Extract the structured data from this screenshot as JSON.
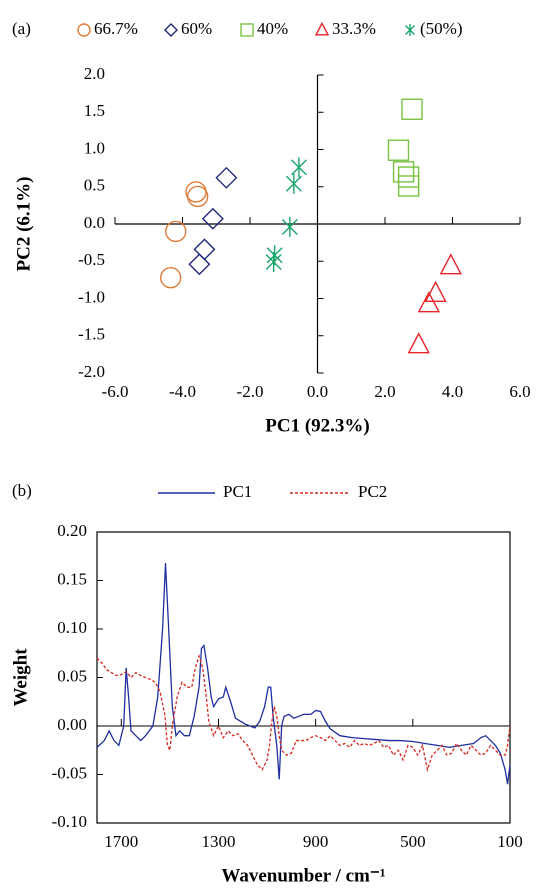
{
  "chart_data": [
    {
      "type": "scatter",
      "label": "(a)",
      "x_label": "PC1 (92.3%)",
      "y_label": "PC2 (6.1%)",
      "xlim": [
        -6,
        6
      ],
      "ylim": [
        -2,
        2
      ],
      "xticks": [
        {
          "value": -6,
          "label": "-6.0"
        },
        {
          "value": -4,
          "label": "-4.0"
        },
        {
          "value": -2,
          "label": "-2.0"
        },
        {
          "value": 0,
          "label": "0.0"
        },
        {
          "value": 2,
          "label": "2.0"
        },
        {
          "value": 4,
          "label": "4.0"
        },
        {
          "value": 6,
          "label": "6.0"
        }
      ],
      "yticks": [
        {
          "value": 2,
          "label": "2.0"
        },
        {
          "value": 1.5,
          "label": "1.5"
        },
        {
          "value": 1,
          "label": "1.0"
        },
        {
          "value": 0.5,
          "label": "0.5"
        },
        {
          "value": 0,
          "label": "0.0"
        },
        {
          "value": -0.5,
          "label": "-0.5"
        },
        {
          "value": -1,
          "label": "-1.0"
        },
        {
          "value": -1.5,
          "label": "-1.5"
        },
        {
          "value": -2,
          "label": "-2.0"
        }
      ],
      "series": [
        {
          "name": "66.7%",
          "color": "#e07b39",
          "marker": "circle",
          "x": [
            -3.6,
            -3.55,
            -4.2,
            -4.35
          ],
          "values": [
            0.43,
            0.37,
            -0.1,
            -0.72
          ]
        },
        {
          "name": "60%",
          "color": "#1f2a7a",
          "marker": "diamond",
          "x": [
            -2.7,
            -3.1,
            -3.35,
            -3.5
          ],
          "values": [
            0.62,
            0.07,
            -0.34,
            -0.54
          ]
        },
        {
          "name": "40%",
          "color": "#7ac143",
          "marker": "square",
          "x": [
            2.8,
            2.4,
            2.55,
            2.7,
            2.7
          ],
          "values": [
            1.54,
            0.99,
            0.7,
            0.63,
            0.51
          ]
        },
        {
          "name": "33.3%",
          "color": "#e8232a",
          "marker": "triangle",
          "x": [
            3.95,
            3.5,
            3.3,
            3.0
          ],
          "values": [
            -0.56,
            -0.93,
            -1.07,
            -1.62
          ]
        },
        {
          "name": "(50%)",
          "color": "#1aa56b",
          "marker": "star",
          "x": [
            -0.55,
            -0.7,
            -0.82,
            -1.27,
            -1.3
          ],
          "values": [
            0.76,
            0.54,
            -0.04,
            -0.42,
            -0.51
          ]
        }
      ]
    },
    {
      "type": "line",
      "label": "(b)",
      "x_label": "Wavenumber / cm⁻¹",
      "y_label": "Weight",
      "xlim": [
        1800,
        100
      ],
      "ylim": [
        -0.1,
        0.2
      ],
      "xticks": [
        1700,
        1300,
        900,
        500,
        100
      ],
      "yticks": [
        {
          "value": 0.2,
          "label": "0.20"
        },
        {
          "value": 0.15,
          "label": "0.15"
        },
        {
          "value": 0.1,
          "label": "0.10"
        },
        {
          "value": 0.05,
          "label": "0.05"
        },
        {
          "value": 0,
          "label": "0.00"
        },
        {
          "value": -0.05,
          "label": "-0.05"
        },
        {
          "value": -0.1,
          "label": "-0.10"
        }
      ],
      "series": [
        {
          "name": "PC1",
          "color": "#1f2fa0",
          "dashed": false,
          "x": [
            1800,
            1770,
            1750,
            1730,
            1710,
            1690,
            1680,
            1670,
            1660,
            1640,
            1620,
            1600,
            1570,
            1550,
            1530,
            1518,
            1505,
            1490,
            1475,
            1460,
            1440,
            1420,
            1400,
            1380,
            1370,
            1360,
            1345,
            1330,
            1320,
            1300,
            1280,
            1270,
            1250,
            1230,
            1210,
            1190,
            1170,
            1150,
            1130,
            1110,
            1095,
            1085,
            1075,
            1060,
            1050,
            1040,
            1030,
            1010,
            990,
            970,
            950,
            920,
            900,
            880,
            860,
            840,
            800,
            750,
            700,
            650,
            600,
            550,
            500,
            450,
            400,
            350,
            300,
            250,
            220,
            200,
            180,
            160,
            140,
            120,
            110,
            100
          ],
          "values": [
            -0.022,
            -0.015,
            -0.005,
            -0.015,
            -0.02,
            0.0,
            0.06,
            0.03,
            -0.005,
            -0.01,
            -0.015,
            -0.01,
            0.0,
            0.03,
            0.1,
            0.168,
            0.1,
            0.02,
            -0.01,
            -0.005,
            -0.01,
            -0.01,
            0.01,
            0.04,
            0.08,
            0.083,
            0.06,
            0.03,
            0.02,
            0.028,
            0.03,
            0.04,
            0.025,
            0.008,
            0.005,
            0.002,
            0.0,
            -0.002,
            0.005,
            0.02,
            0.04,
            0.04,
            0.01,
            -0.02,
            -0.055,
            0.0,
            0.01,
            0.012,
            0.008,
            0.01,
            0.012,
            0.012,
            0.016,
            0.015,
            0.005,
            -0.003,
            -0.01,
            -0.012,
            -0.013,
            -0.014,
            -0.015,
            -0.015,
            -0.016,
            -0.018,
            -0.02,
            -0.022,
            -0.02,
            -0.018,
            -0.012,
            -0.01,
            -0.015,
            -0.02,
            -0.028,
            -0.045,
            -0.06,
            -0.04
          ]
        },
        {
          "name": "PC2",
          "color": "#d6281f",
          "dashed": true,
          "x": [
            1800,
            1780,
            1760,
            1740,
            1720,
            1700,
            1680,
            1660,
            1640,
            1620,
            1600,
            1580,
            1560,
            1540,
            1520,
            1510,
            1500,
            1490,
            1470,
            1450,
            1430,
            1410,
            1395,
            1380,
            1365,
            1350,
            1340,
            1320,
            1300,
            1280,
            1260,
            1240,
            1220,
            1200,
            1180,
            1160,
            1140,
            1120,
            1100,
            1090,
            1080,
            1070,
            1060,
            1050,
            1040,
            1020,
            1000,
            980,
            960,
            940,
            920,
            900,
            880,
            860,
            840,
            820,
            800,
            780,
            760,
            740,
            720,
            700,
            680,
            660,
            640,
            620,
            600,
            580,
            560,
            540,
            520,
            500,
            480,
            460,
            440,
            420,
            400,
            380,
            360,
            340,
            320,
            300,
            280,
            260,
            240,
            220,
            200,
            180,
            160,
            140,
            120,
            110,
            100
          ],
          "values": [
            0.07,
            0.065,
            0.058,
            0.055,
            0.052,
            0.053,
            0.056,
            0.05,
            0.055,
            0.052,
            0.05,
            0.048,
            0.045,
            0.035,
            0.01,
            -0.02,
            -0.025,
            0.0,
            0.03,
            0.045,
            0.04,
            0.04,
            0.06,
            0.072,
            0.06,
            0.03,
            0.005,
            -0.01,
            0.0,
            -0.012,
            -0.005,
            -0.01,
            -0.008,
            -0.015,
            -0.02,
            -0.03,
            -0.04,
            -0.045,
            -0.035,
            -0.02,
            0.005,
            0.02,
            0.01,
            -0.01,
            -0.025,
            -0.03,
            -0.028,
            -0.015,
            -0.015,
            -0.015,
            -0.012,
            -0.01,
            -0.012,
            -0.015,
            -0.01,
            -0.015,
            -0.02,
            -0.018,
            -0.022,
            -0.015,
            -0.02,
            -0.018,
            -0.02,
            -0.018,
            -0.015,
            -0.022,
            -0.02,
            -0.03,
            -0.025,
            -0.035,
            -0.02,
            -0.022,
            -0.03,
            -0.02,
            -0.045,
            -0.03,
            -0.025,
            -0.02,
            -0.03,
            -0.028,
            -0.018,
            -0.025,
            -0.03,
            -0.02,
            -0.025,
            -0.03,
            -0.028,
            -0.02,
            -0.025,
            -0.03,
            -0.03,
            -0.02,
            0.0
          ]
        }
      ]
    }
  ]
}
